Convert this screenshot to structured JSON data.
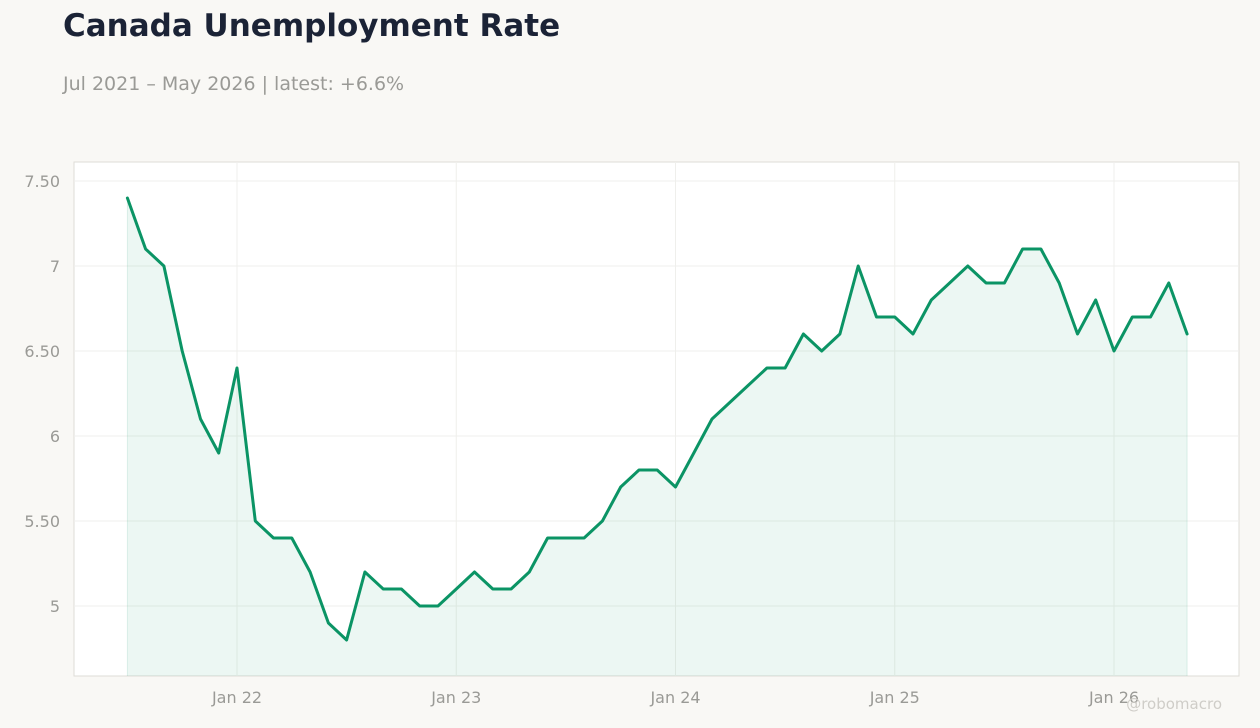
{
  "header": {
    "title": "Canada Unemployment Rate",
    "subtitle": "Jul 2021 – May 2026 | latest: +6.6%"
  },
  "watermark": "@robomacro",
  "colors": {
    "line": "#0b9465",
    "fill": "#0b9465",
    "background": "#f9f8f5",
    "plot_background": "#ffffff",
    "grid": "#efefec"
  },
  "chart_data": {
    "type": "area",
    "title": "Canada Unemployment Rate",
    "subtitle": "Jul 2021 – May 2026 | latest: +6.6%",
    "xlabel": "",
    "ylabel": "",
    "x_start": "2021-07",
    "x_end": "2026-05",
    "x_tick_labels": [
      {
        "date": "2022-01",
        "label": "Jan 22"
      },
      {
        "date": "2023-01",
        "label": "Jan 23"
      },
      {
        "date": "2024-01",
        "label": "Jan 24"
      },
      {
        "date": "2025-01",
        "label": "Jan 25"
      },
      {
        "date": "2026-01",
        "label": "Jan 26"
      }
    ],
    "y_ticks": [
      {
        "value": 5,
        "label": "5"
      },
      {
        "value": 5.5,
        "label": "5.50"
      },
      {
        "value": 6,
        "label": "6"
      },
      {
        "value": 6.5,
        "label": "6.50"
      },
      {
        "value": 7,
        "label": "7"
      },
      {
        "value": 7.5,
        "label": "7.50"
      }
    ],
    "ylim": [
      4.6,
      7.6
    ],
    "grid": true,
    "legend": "none",
    "series": [
      {
        "x": [
          "2021-07",
          "2021-08",
          "2021-09",
          "2021-10",
          "2021-11",
          "2021-12",
          "2022-01",
          "2022-02",
          "2022-03",
          "2022-04",
          "2022-05",
          "2022-06",
          "2022-07",
          "2022-08",
          "2022-09",
          "2022-10",
          "2022-11",
          "2022-12",
          "2023-01",
          "2023-02",
          "2023-03",
          "2023-04",
          "2023-05",
          "2023-06",
          "2023-07",
          "2023-08",
          "2023-09",
          "2023-10",
          "2023-11",
          "2023-12",
          "2024-01",
          "2024-02",
          "2024-03",
          "2024-04",
          "2024-05",
          "2024-06",
          "2024-07",
          "2024-08",
          "2024-09",
          "2024-10",
          "2024-11",
          "2024-12",
          "2025-01",
          "2025-02",
          "2025-03",
          "2025-04",
          "2025-05",
          "2025-06",
          "2025-07",
          "2025-08",
          "2025-09",
          "2025-10",
          "2025-11",
          "2025-12",
          "2026-01",
          "2026-02",
          "2026-03",
          "2026-04",
          "2026-05"
        ],
        "values": [
          7.4,
          7.1,
          7.0,
          6.5,
          6.1,
          5.9,
          6.4,
          5.5,
          5.4,
          5.4,
          5.2,
          4.9,
          4.8,
          5.2,
          5.1,
          5.1,
          5.0,
          5.0,
          5.1,
          5.2,
          5.1,
          5.1,
          5.2,
          5.4,
          5.4,
          5.4,
          5.5,
          5.7,
          5.8,
          5.8,
          5.7,
          5.9,
          6.1,
          6.2,
          6.3,
          6.4,
          6.4,
          6.6,
          6.5,
          6.6,
          7.0,
          6.7,
          6.7,
          6.6,
          6.8,
          6.9,
          7.0,
          6.9,
          6.9,
          7.1,
          7.1,
          6.9,
          6.6,
          6.8,
          6.5,
          6.7,
          6.7,
          6.9,
          6.6
        ]
      }
    ]
  }
}
